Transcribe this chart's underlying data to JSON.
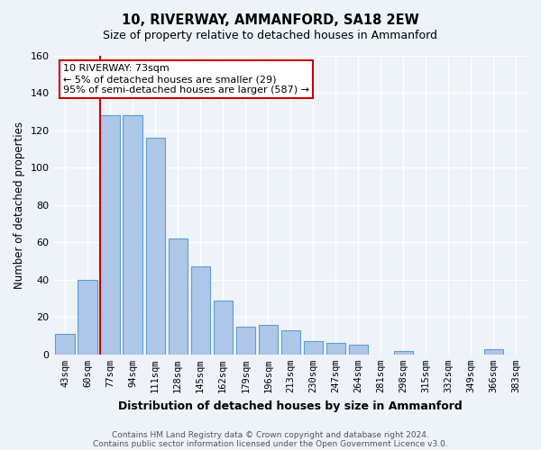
{
  "title": "10, RIVERWAY, AMMANFORD, SA18 2EW",
  "subtitle": "Size of property relative to detached houses in Ammanford",
  "xlabel": "Distribution of detached houses by size in Ammanford",
  "ylabel": "Number of detached properties",
  "bar_labels": [
    "43sqm",
    "60sqm",
    "77sqm",
    "94sqm",
    "111sqm",
    "128sqm",
    "145sqm",
    "162sqm",
    "179sqm",
    "196sqm",
    "213sqm",
    "230sqm",
    "247sqm",
    "264sqm",
    "281sqm",
    "298sqm",
    "315sqm",
    "332sqm",
    "349sqm",
    "366sqm",
    "383sqm"
  ],
  "bar_values": [
    11,
    40,
    128,
    128,
    116,
    62,
    47,
    29,
    15,
    16,
    13,
    7,
    6,
    5,
    0,
    2,
    0,
    0,
    0,
    3,
    0
  ],
  "bar_color": "#aec6e8",
  "bar_edge_color": "#5a9fd4",
  "ylim": [
    0,
    160
  ],
  "yticks": [
    0,
    20,
    40,
    60,
    80,
    100,
    120,
    140,
    160
  ],
  "marker_bar_index": 2,
  "marker_color": "#cc0000",
  "annotation_title": "10 RIVERWAY: 73sqm",
  "annotation_line1": "← 5% of detached houses are smaller (29)",
  "annotation_line2": "95% of semi-detached houses are larger (587) →",
  "annotation_box_color": "#cc0000",
  "footer_line1": "Contains HM Land Registry data © Crown copyright and database right 2024.",
  "footer_line2": "Contains public sector information licensed under the Open Government Licence v3.0.",
  "bg_color": "#eef2f9",
  "grid_color": "#ffffff"
}
